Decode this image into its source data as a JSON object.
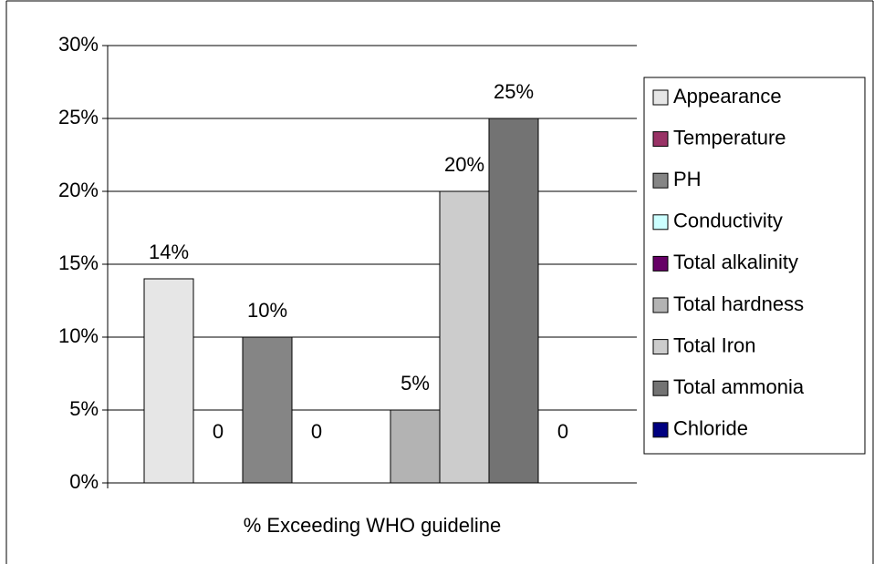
{
  "chart_data": {
    "type": "bar",
    "categories": [
      "% Exceeding WHO guideline"
    ],
    "series": [
      {
        "name": "Appearance",
        "color": "#e6e6e6",
        "values": [
          14
        ],
        "value_labels": [
          "14%"
        ]
      },
      {
        "name": "Temperature",
        "color": "#993366",
        "values": [
          0
        ],
        "value_labels": [
          "0"
        ]
      },
      {
        "name": "PH",
        "color": "#858585",
        "values": [
          10
        ],
        "value_labels": [
          "10%"
        ]
      },
      {
        "name": "Conductivity",
        "color": "#ccffff",
        "values": [
          0
        ],
        "value_labels": [
          "0"
        ]
      },
      {
        "name": "Total alkalinity",
        "color": "#660066",
        "values": [
          0
        ],
        "value_labels": [
          null
        ]
      },
      {
        "name": "Total hardness",
        "color": "#b3b3b3",
        "values": [
          5
        ],
        "value_labels": [
          "5%"
        ]
      },
      {
        "name": "Total Iron",
        "color": "#cccccc",
        "values": [
          20
        ],
        "value_labels": [
          "20%"
        ]
      },
      {
        "name": "Total ammonia",
        "color": "#737373",
        "values": [
          25
        ],
        "value_labels": [
          "25%"
        ]
      },
      {
        "name": "Chloride",
        "color": "#000080",
        "values": [
          0
        ],
        "value_labels": [
          "0"
        ]
      }
    ],
    "ylim": [
      0,
      30
    ],
    "yticks": [
      {
        "value": 0,
        "label": "0%"
      },
      {
        "value": 5,
        "label": "5%"
      },
      {
        "value": 10,
        "label": "10%"
      },
      {
        "value": 15,
        "label": "15%"
      },
      {
        "value": 20,
        "label": "20%"
      },
      {
        "value": 25,
        "label": "25%"
      },
      {
        "value": 30,
        "label": "30%"
      }
    ],
    "grid": true,
    "legend": "right"
  }
}
